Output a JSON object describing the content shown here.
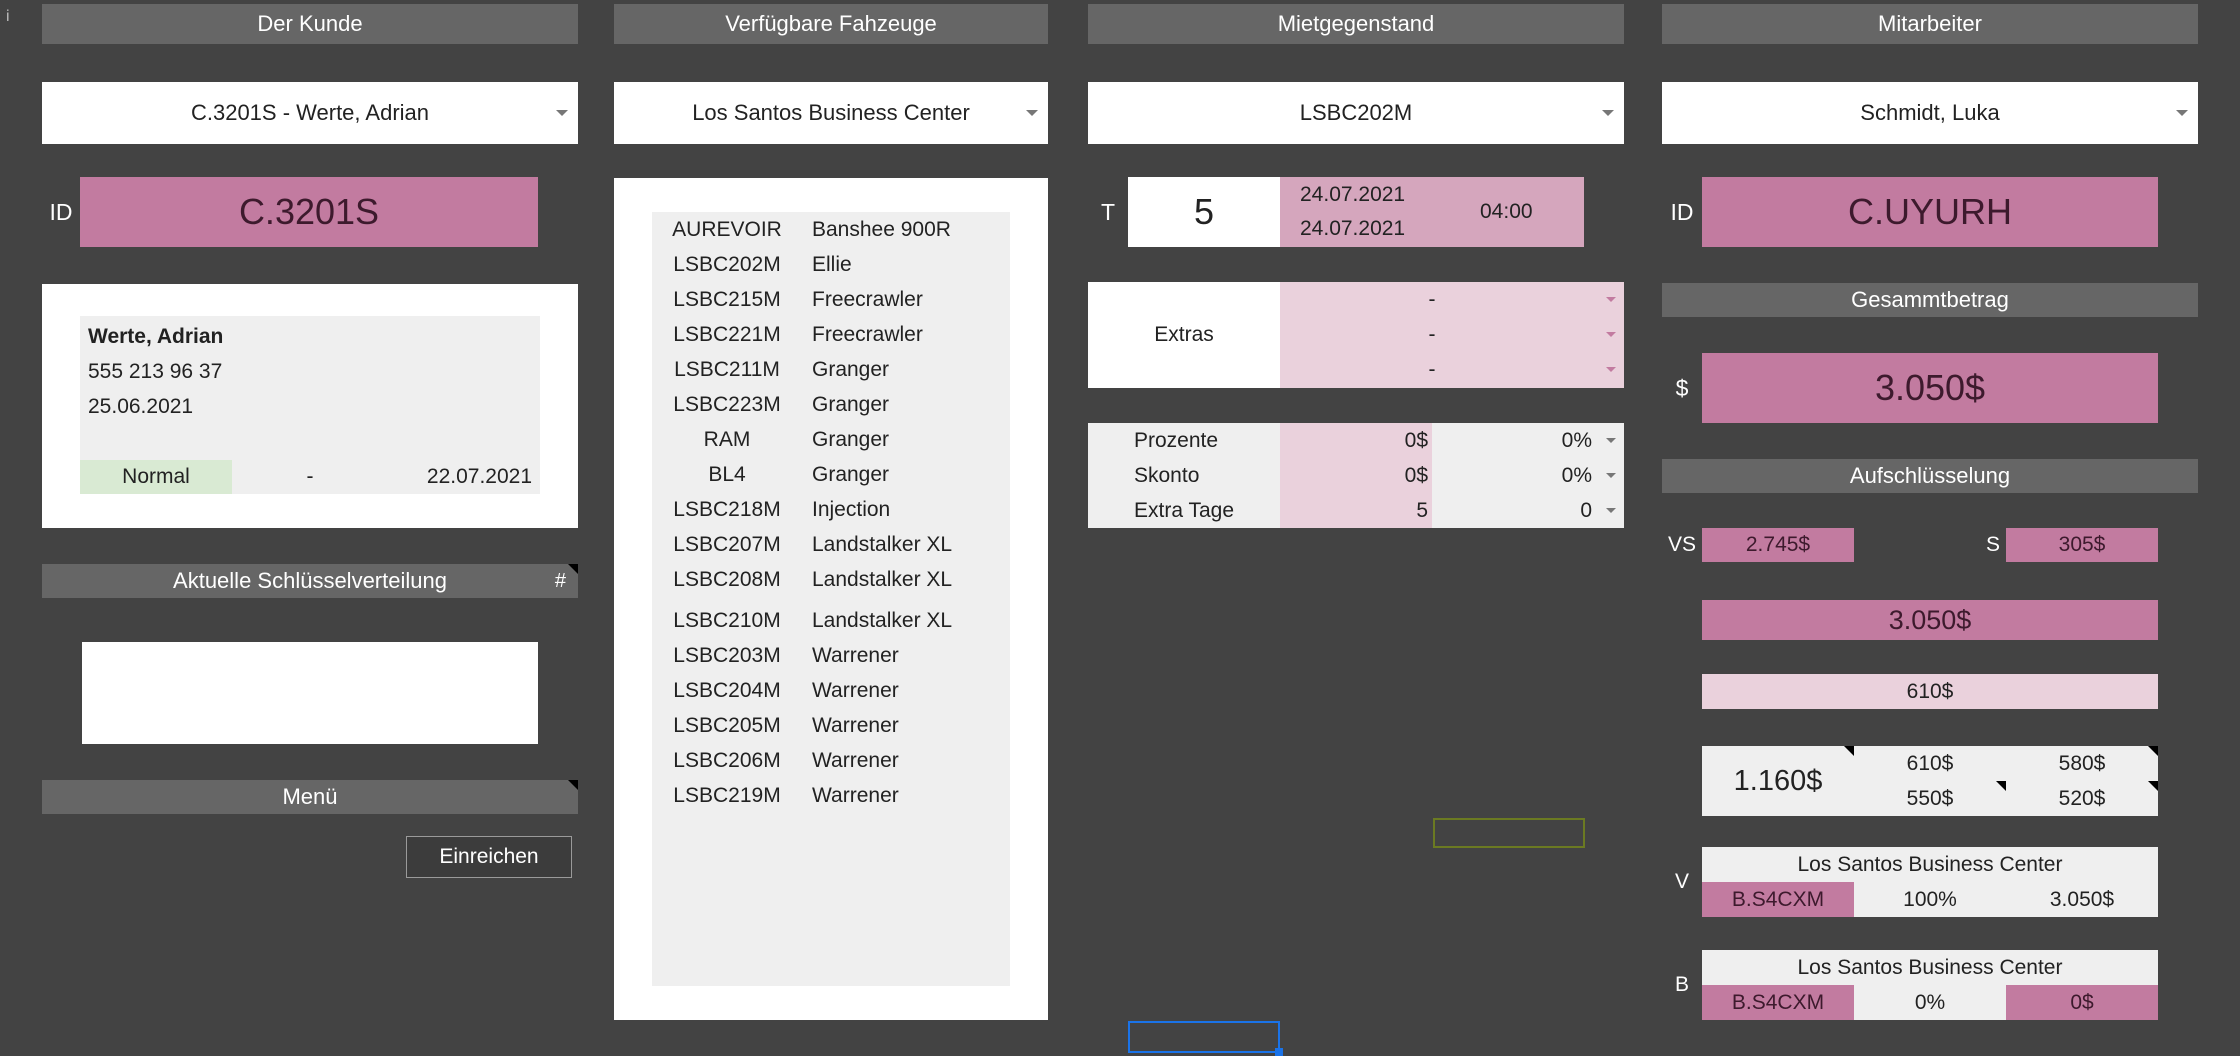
{
  "corner_mark": "i",
  "headers": {
    "kunde": "Der Kunde",
    "fahrzeuge": "Verfügbare Fahzeuge",
    "mietgegenstand": "Mietgegenstand",
    "mitarbeiter": "Mitarbeiter"
  },
  "dropdowns": {
    "kunde": "C.3201S - Werte, Adrian",
    "standort": "Los Santos Business Center",
    "fahrzeug": "LSBC202M",
    "mitarbeiter": "Schmidt, Luka"
  },
  "customer": {
    "id_label": "ID",
    "id": "C.3201S",
    "name": "Werte, Adrian",
    "phone": "555 213 96 37",
    "date": "25.06.2021",
    "status": "Normal",
    "dash": "-",
    "date2": "22.07.2021"
  },
  "keys_header": "Aktuelle Schlüsselverteilung",
  "keys_hash": "#",
  "menu_header": "Menü",
  "submit_button": "Einreichen",
  "vehicles": [
    {
      "plate": "AUREVOIR",
      "model": "Banshee 900R"
    },
    {
      "plate": "LSBC202M",
      "model": "Ellie"
    },
    {
      "plate": "LSBC215M",
      "model": "Freecrawler"
    },
    {
      "plate": "LSBC221M",
      "model": "Freecrawler"
    },
    {
      "plate": "LSBC211M",
      "model": "Granger"
    },
    {
      "plate": "LSBC223M",
      "model": "Granger"
    },
    {
      "plate": "RAM",
      "model": "Granger"
    },
    {
      "plate": "BL4",
      "model": "Granger"
    },
    {
      "plate": "LSBC218M",
      "model": "Injection"
    },
    {
      "plate": "LSBC207M",
      "model": "Landstalker XL"
    },
    {
      "plate": "LSBC208M",
      "model": "Landstalker XL"
    },
    {
      "plate": "LSBC210M",
      "model": "Landstalker XL"
    },
    {
      "plate": "LSBC203M",
      "model": "Warrener"
    },
    {
      "plate": "LSBC204M",
      "model": "Warrener"
    },
    {
      "plate": "LSBC205M",
      "model": "Warrener"
    },
    {
      "plate": "LSBC206M",
      "model": "Warrener"
    },
    {
      "plate": "LSBC219M",
      "model": "Warrener"
    }
  ],
  "rental": {
    "t_label": "T",
    "days": "5",
    "date_from": "24.07.2021",
    "date_to": "24.07.2021",
    "time": "04:00",
    "extras_label": "Extras",
    "extras": [
      "-",
      "-",
      "-"
    ],
    "prozente_label": "Prozente",
    "prozente_amount": "0$",
    "prozente_pct": "0%",
    "skonto_label": "Skonto",
    "skonto_amount": "0$",
    "skonto_pct": "0%",
    "extra_tage_label": "Extra Tage",
    "extra_tage_value": "5",
    "extra_tage_sel": "0"
  },
  "employee": {
    "id_label": "ID",
    "id": "C.UYURH"
  },
  "total": {
    "header": "Gesammtbetrag",
    "currency_label": "$",
    "amount": "3.050$"
  },
  "breakdown": {
    "header": "Aufschlüsselung",
    "vs_label": "VS",
    "vs_value": "2.745$",
    "s_label": "S",
    "s_value": "305$",
    "sum": "3.050$",
    "deposit": "610$",
    "grid_main": "1.160$",
    "grid": [
      "610$",
      "580$",
      "550$",
      "520$"
    ],
    "v_label": "V",
    "v_location": "Los Santos Business Center",
    "v_id": "B.S4CXM",
    "v_pct": "100%",
    "v_amount": "3.050$",
    "b_label": "B",
    "b_location": "Los Santos Business Center",
    "b_id": "B.S4CXM",
    "b_pct": "0%",
    "b_amount": "0$"
  },
  "colors": {
    "background": "#434343",
    "header": "#666666",
    "pink": "#c27ba0",
    "pink_light": "#ead1dc",
    "green_status": "#d9ead3"
  }
}
